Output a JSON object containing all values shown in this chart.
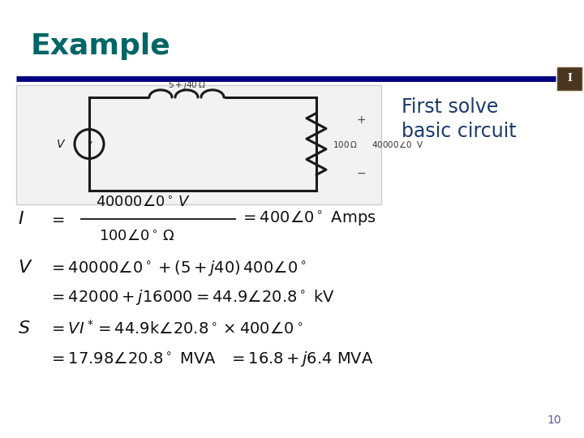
{
  "title": "Example",
  "title_color": "#006666",
  "title_fontsize": 26,
  "slide_bg": "#FFFFFF",
  "first_solve_text": "First solve",
  "basic_circuit_text": "basic circuit",
  "sidebar_text_color": "#1B3A6B",
  "sidebar_fontsize": 17,
  "page_number": "10",
  "bar_color": "#000080",
  "icon_color": "#4a3520",
  "eq_color": "#111111",
  "eq_fs": 13,
  "circuit_bg": "#f2f2f2",
  "circuit_border": "#cccccc"
}
